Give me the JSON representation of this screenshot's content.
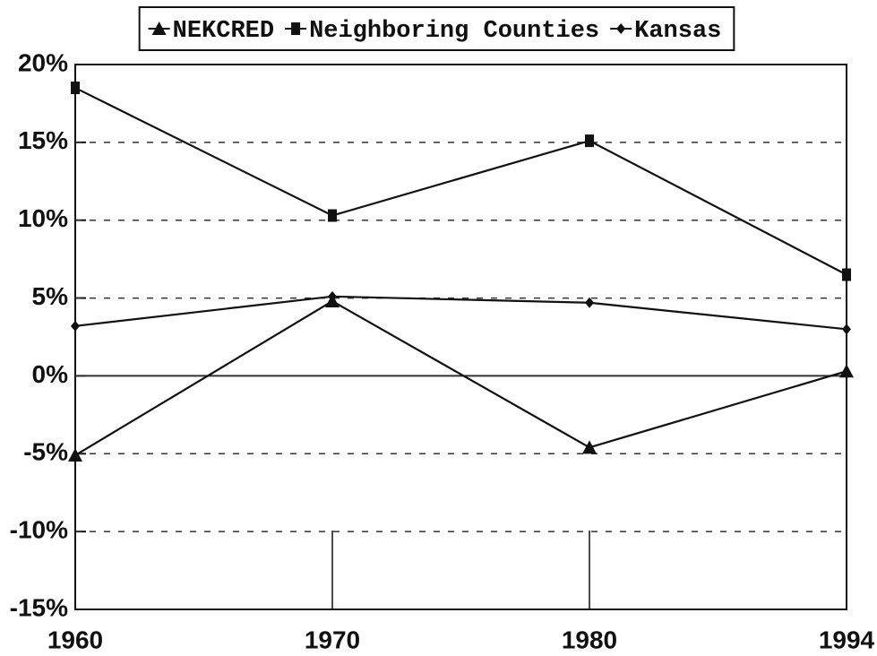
{
  "chart_data": {
    "type": "line",
    "categories": [
      "1960",
      "1970",
      "1980",
      "1994"
    ],
    "series": [
      {
        "name": "NEKCRED",
        "color": "#111111",
        "marker": "triangle",
        "values": [
          -5.1,
          4.8,
          -4.6,
          0.3
        ]
      },
      {
        "name": "Neighboring Counties",
        "color": "#111111",
        "marker": "square",
        "values": [
          18.5,
          10.3,
          15.1,
          6.5
        ]
      },
      {
        "name": "Kansas",
        "color": "#111111",
        "marker": "diamond",
        "values": [
          3.2,
          5.1,
          4.7,
          3.0
        ]
      }
    ],
    "ylim": [
      -15,
      20
    ],
    "yticks": [
      {
        "value": -15,
        "label": "-15%"
      },
      {
        "value": -10,
        "label": "-10%"
      },
      {
        "value": -5,
        "label": "-5%"
      },
      {
        "value": 0,
        "label": "0%"
      },
      {
        "value": 5,
        "label": "5%"
      },
      {
        "value": 10,
        "label": "10%"
      },
      {
        "value": 15,
        "label": "15%"
      },
      {
        "value": 20,
        "label": "20%"
      }
    ],
    "grid": true,
    "zero_line": true,
    "legend": "top"
  }
}
